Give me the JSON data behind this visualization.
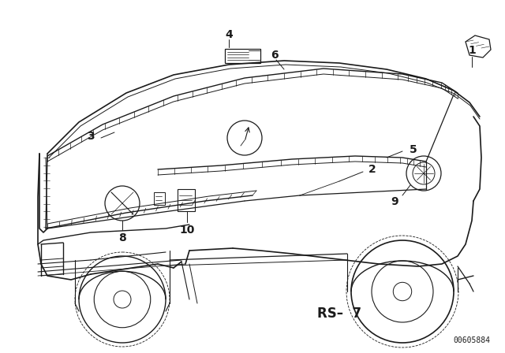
{
  "background_color": "#ffffff",
  "line_color": "#1a1a1a",
  "rs_label": "RS–  7",
  "doc_number": "00605884",
  "fig_width": 6.4,
  "fig_height": 4.48,
  "dpi": 100
}
